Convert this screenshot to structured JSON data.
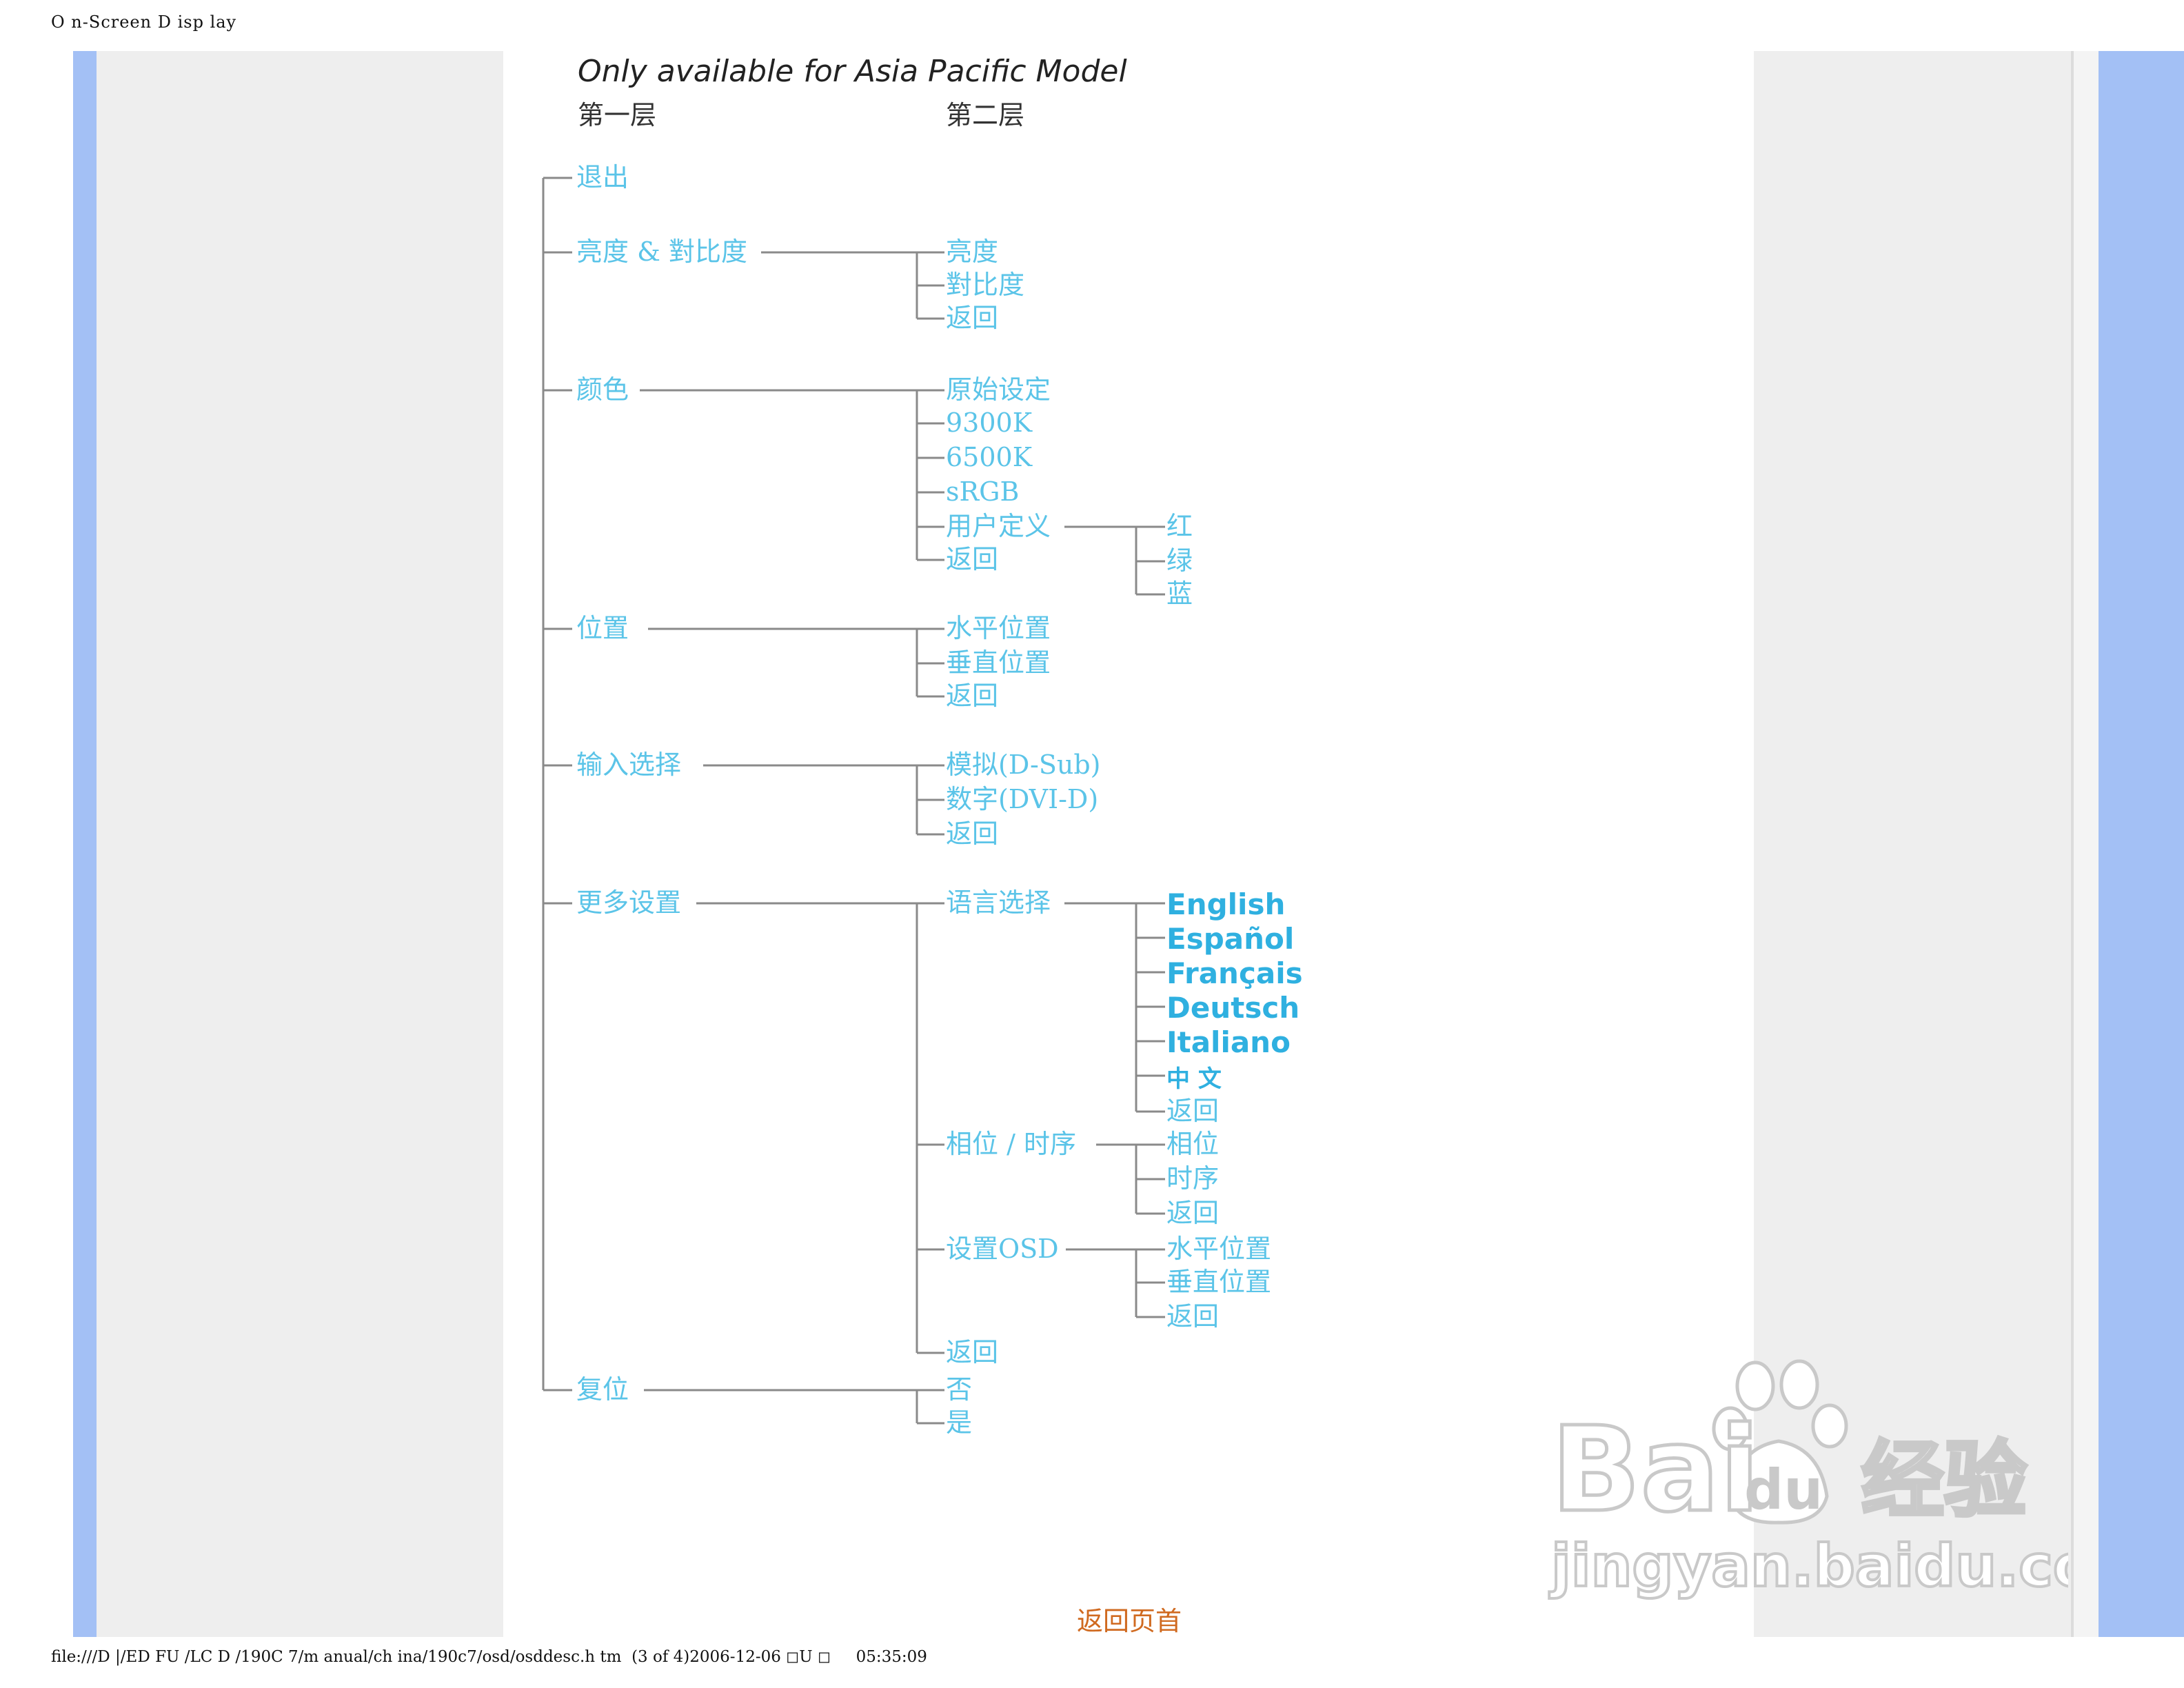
{
  "header": {
    "title": "O n-Screen D isp lay"
  },
  "diagram": {
    "subtitle": "Only available for Asia Pacific Model",
    "col1_heading": "第一层",
    "col2_heading": "第二层",
    "level1": [
      "退出",
      "亮度 & 對比度",
      "颜色",
      "位置",
      "输入选择",
      "更多设置",
      "复位"
    ],
    "brightness": [
      "亮度",
      "對比度",
      "返回"
    ],
    "color": [
      "原始设定",
      "9300K",
      "6500K",
      "sRGB",
      "用户定义",
      "返回"
    ],
    "user_define": [
      "红",
      "绿",
      "蓝"
    ],
    "position": [
      "水平位置",
      "垂直位置",
      "返回"
    ],
    "input": [
      "模拟(D-Sub)",
      "数字(DVI-D)",
      "返回"
    ],
    "more": [
      "语言选择",
      "相位 / 时序",
      "设置OSD",
      "返回"
    ],
    "languages": [
      "English",
      "Español",
      "Français",
      "Deutsch",
      "Italiano",
      "中 文",
      "返回"
    ],
    "phase": [
      "相位",
      "时序",
      "返回"
    ],
    "osd": [
      "水平位置",
      "垂直位置",
      "返回"
    ],
    "reset": [
      "否",
      "是"
    ]
  },
  "link": {
    "back_to_top": "返回页首"
  },
  "footer": {
    "text": "file:///D |/ED FU /LC D /190C 7/m anual/ch ina/190c7/osd/osddesc.h tm  (3 of 4)2006-12-06 ◻U ◻     05:35:09"
  },
  "watermark": {
    "brand": "Bai",
    "brand2": "du",
    "cn": "经验",
    "url": "jingyan.baidu.com"
  },
  "colors": {
    "diagram_text": "#5bc4e8",
    "lines": "#888888",
    "lang": "#2fb0e0",
    "link": "#d06a20",
    "band": "#a3c0f5"
  }
}
